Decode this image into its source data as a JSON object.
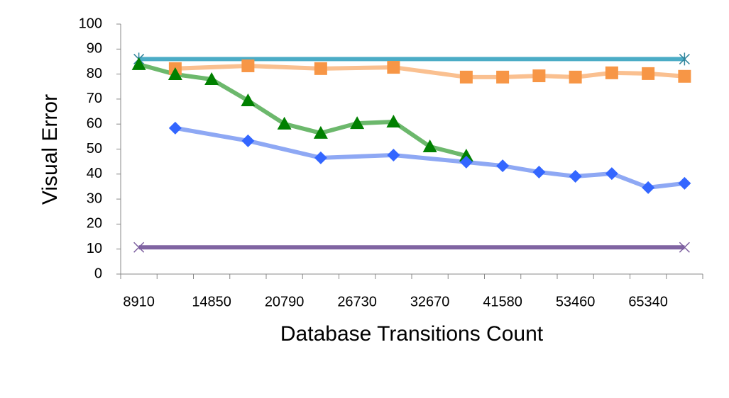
{
  "chart_data": {
    "type": "line",
    "x_label": "Database Transitions Count",
    "y_label": "Visual Error",
    "categories": [
      "8910",
      null,
      "14850",
      null,
      "20790",
      null,
      "26730",
      null,
      "32670",
      null,
      "41580",
      null,
      "53460",
      null,
      "65340",
      null
    ],
    "ylim": [
      0,
      100
    ],
    "yticks": [
      0,
      10,
      20,
      30,
      40,
      50,
      60,
      70,
      80,
      90,
      100
    ],
    "grid": false,
    "connect_gaps": true,
    "series": [
      {
        "color": "#4bacc6",
        "marker_color": "#31859c",
        "marker": "asterisk",
        "values": [
          86,
          null,
          null,
          null,
          null,
          null,
          null,
          null,
          null,
          null,
          null,
          null,
          null,
          null,
          null,
          86
        ]
      },
      {
        "color": "#8064a2",
        "marker_color": "#7a5c9e",
        "marker": "x",
        "values": [
          10.7,
          null,
          null,
          null,
          null,
          null,
          null,
          null,
          null,
          null,
          null,
          null,
          null,
          null,
          null,
          10.7
        ]
      },
      {
        "color": "#fac090",
        "marker_color": "#f79646",
        "marker": "square",
        "values": [
          null,
          82.2,
          null,
          83.3,
          null,
          82.2,
          null,
          82.7,
          null,
          78.8,
          78.8,
          79.3,
          78.8,
          80.5,
          80.2,
          79.1
        ]
      },
      {
        "color": "#6cb86c",
        "marker_color": "#008000",
        "marker": "triangle",
        "values": [
          83.9,
          79.9,
          77.9,
          69.4,
          60.1,
          56.4,
          60.3,
          60.9,
          51.0,
          47.3,
          null,
          null,
          null,
          null,
          null,
          null
        ]
      },
      {
        "color": "#8ea8f4",
        "marker_color": "#3366ff",
        "marker": "diamond",
        "values": [
          null,
          58.4,
          null,
          53.3,
          null,
          46.5,
          null,
          47.6,
          null,
          44.8,
          43.3,
          40.8,
          39.1,
          40.2,
          34.6,
          36.3
        ]
      }
    ]
  }
}
